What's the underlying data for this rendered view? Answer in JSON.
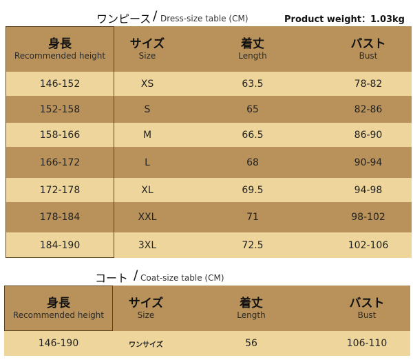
{
  "dress": {
    "title_jp": "ワンピース",
    "slash": "/",
    "title_en": "Dress-size table (CM)",
    "weight": "Product weight：1.03kg",
    "headers": [
      {
        "jp": "身長",
        "en": "Recommended height"
      },
      {
        "jp": "サイズ",
        "en": "Size"
      },
      {
        "jp": "着丈",
        "en": "Length"
      },
      {
        "jp": "バスト",
        "en": "Bust"
      }
    ],
    "rows": [
      [
        "146-152",
        "XS",
        "63.5",
        "78-82"
      ],
      [
        "152-158",
        "S",
        "65",
        "82-86"
      ],
      [
        "158-166",
        "M",
        "66.5",
        "86-90"
      ],
      [
        "166-172",
        "L",
        "68",
        "90-94"
      ],
      [
        "172-178",
        "XL",
        "69.5",
        "94-98"
      ],
      [
        "178-184",
        "XXL",
        "71",
        "98-102"
      ],
      [
        "184-190",
        "3XL",
        "72.5",
        "102-106"
      ]
    ]
  },
  "coat": {
    "title_jp": "コート",
    "slash": "/",
    "title_en": "Coat-size table (CM)",
    "headers": [
      {
        "jp": "身長",
        "en": "Recommended height"
      },
      {
        "jp": "サイズ",
        "en": "Size"
      },
      {
        "jp": "着丈",
        "en": "Length"
      },
      {
        "jp": "バスト",
        "en": "Bust"
      }
    ],
    "rows": [
      [
        "146-190",
        "ワンサイズ",
        "56",
        "106-110"
      ]
    ]
  }
}
